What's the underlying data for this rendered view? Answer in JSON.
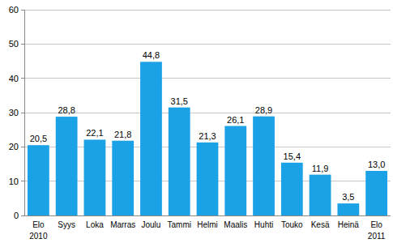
{
  "chart_data": {
    "type": "bar",
    "categories": [
      "Elo",
      "Syys",
      "Loka",
      "Marras",
      "Joulu",
      "Tammi",
      "Helmi",
      "Maalis",
      "Huhti",
      "Touko",
      "Kesä",
      "Heinä",
      "Elo"
    ],
    "values": [
      20.5,
      28.8,
      22.1,
      21.8,
      44.8,
      31.5,
      21.3,
      26.1,
      28.9,
      15.4,
      11.9,
      3.5,
      13.0
    ],
    "value_labels": [
      "20,5",
      "28,8",
      "22,1",
      "21,8",
      "44,8",
      "31,5",
      "21,3",
      "26,1",
      "28,9",
      "15,4",
      "11,9",
      "3,5",
      "13,0"
    ],
    "data_labels": true,
    "annotations": [
      {
        "text": "2010",
        "category": 0
      },
      {
        "text": "2011",
        "category": 12
      }
    ],
    "color": "#1ba1e6",
    "ylim": [
      0,
      60
    ],
    "yticks": [
      0,
      10,
      20,
      30,
      40,
      50,
      60
    ],
    "grid": true
  }
}
